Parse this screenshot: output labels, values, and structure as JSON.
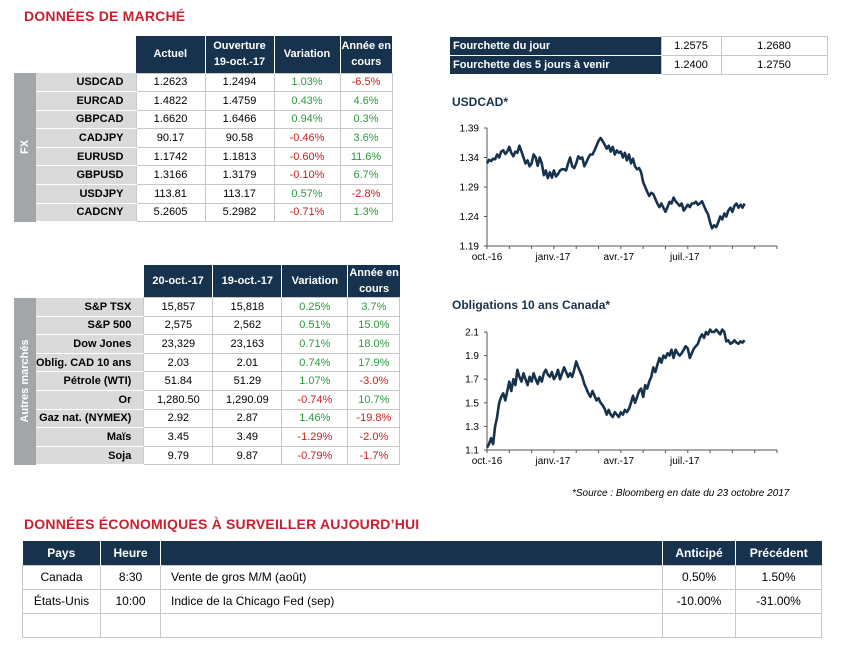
{
  "market_title": "DONNÉES DE MARCHÉ",
  "fx": {
    "group_label": "FX",
    "headers": [
      "Actuel",
      "Ouverture\n19-oct.-17",
      "Variation",
      "Année en\ncours"
    ],
    "rows": [
      {
        "name": "USDCAD",
        "actuel": "1.2623",
        "ouverture": "1.2494",
        "variation": "1.03%",
        "ytd": "-6.5%"
      },
      {
        "name": "EURCAD",
        "actuel": "1.4822",
        "ouverture": "1.4759",
        "variation": "0.43%",
        "ytd": "4.6%"
      },
      {
        "name": "GBPCAD",
        "actuel": "1.6620",
        "ouverture": "1.6466",
        "variation": "0.94%",
        "ytd": "0.3%"
      },
      {
        "name": "CADJPY",
        "actuel": "90.17",
        "ouverture": "90.58",
        "variation": "-0.46%",
        "ytd": "3.6%"
      },
      {
        "name": "EURUSD",
        "actuel": "1.1742",
        "ouverture": "1.1813",
        "variation": "-0.60%",
        "ytd": "11.6%"
      },
      {
        "name": "GBPUSD",
        "actuel": "1.3166",
        "ouverture": "1.3179",
        "variation": "-0.10%",
        "ytd": "6.7%"
      },
      {
        "name": "USDJPY",
        "actuel": "113.81",
        "ouverture": "113.17",
        "variation": "0.57%",
        "ytd": "-2.8%"
      },
      {
        "name": "CADCNY",
        "actuel": "5.2605",
        "ouverture": "5.2982",
        "variation": "-0.71%",
        "ytd": "1.3%"
      }
    ]
  },
  "other": {
    "group_label": "Autres marchés",
    "headers": [
      "20-oct.-17",
      "19-oct.-17",
      "Variation",
      "Année en\ncours"
    ],
    "rows": [
      {
        "name": "S&P TSX",
        "actuel": "15,857",
        "ouverture": "15,818",
        "variation": "0.25%",
        "ytd": "3.7%"
      },
      {
        "name": "S&P 500",
        "actuel": "2,575",
        "ouverture": "2,562",
        "variation": "0.51%",
        "ytd": "15.0%"
      },
      {
        "name": "Dow Jones",
        "actuel": "23,329",
        "ouverture": "23,163",
        "variation": "0.71%",
        "ytd": "18.0%"
      },
      {
        "name": "Oblig. CAD 10 ans",
        "actuel": "2.03",
        "ouverture": "2.01",
        "variation": "0.74%",
        "ytd": "17.9%"
      },
      {
        "name": "Pétrole (WTI)",
        "actuel": "51.84",
        "ouverture": "51.29",
        "variation": "1.07%",
        "ytd": "-3.0%"
      },
      {
        "name": "Or",
        "actuel": "1,280.50",
        "ouverture": "1,290.09",
        "variation": "-0.74%",
        "ytd": "10.7%"
      },
      {
        "name": "Gaz nat. (NYMEX)",
        "actuel": "2.92",
        "ouverture": "2.87",
        "variation": "1.46%",
        "ytd": "-19.8%"
      },
      {
        "name": "Maïs",
        "actuel": "3.45",
        "ouverture": "3.49",
        "variation": "-1.29%",
        "ytd": "-2.0%"
      },
      {
        "name": "Soja",
        "actuel": "9.79",
        "ouverture": "9.87",
        "variation": "-0.79%",
        "ytd": "-1.7%"
      }
    ]
  },
  "range": {
    "rows": [
      {
        "label": "Fourchette du jour",
        "low": "1.2575",
        "high": "1.2680"
      },
      {
        "label": "Fourchette des 5 jours à venir",
        "low": "1.2400",
        "high": "1.2750"
      }
    ]
  },
  "chart_data": [
    {
      "type": "line",
      "title": "USDCAD*",
      "x_ticks": [
        "oct.-16",
        "janv.-17",
        "avr.-17",
        "juil.-17"
      ],
      "y_ticks": [
        1.19,
        1.24,
        1.29,
        1.34,
        1.39
      ],
      "ylim": [
        1.19,
        1.39
      ],
      "grid": false,
      "color": "#17324d",
      "series": [
        {
          "x": [
            0,
            2,
            4,
            6,
            8,
            10,
            12,
            14,
            16,
            18,
            20,
            22,
            24,
            26,
            28,
            30,
            32,
            34,
            36,
            38,
            40,
            42,
            44,
            46,
            48,
            50,
            52,
            54,
            56,
            58,
            60,
            62,
            64,
            66,
            68,
            70,
            72,
            74,
            76,
            78,
            80,
            82,
            84,
            86,
            88,
            90,
            92,
            94,
            96,
            98,
            100,
            102,
            104,
            106,
            108,
            110,
            112,
            114,
            116,
            118,
            120,
            122,
            124,
            126,
            128,
            130,
            132,
            134,
            136,
            138,
            140,
            142,
            144,
            146,
            148,
            150,
            152,
            154,
            156,
            158,
            160,
            162,
            164,
            166,
            168,
            170,
            172,
            174,
            176,
            178,
            180,
            182,
            184,
            186,
            188,
            190,
            192,
            194,
            196,
            198,
            200,
            202,
            204,
            206,
            208,
            210,
            212,
            214,
            216,
            218,
            220,
            222,
            224,
            226,
            228,
            230,
            232,
            234,
            236,
            238,
            240,
            242,
            244,
            246,
            248,
            250,
            252,
            254
          ],
          "y": [
            1.33,
            1.336,
            1.334,
            1.338,
            1.337,
            1.345,
            1.34,
            1.35,
            1.352,
            1.346,
            1.35,
            1.358,
            1.348,
            1.342,
            1.35,
            1.348,
            1.36,
            1.35,
            1.34,
            1.33,
            1.335,
            1.325,
            1.33,
            1.345,
            1.34,
            1.326,
            1.34,
            1.33,
            1.31,
            1.318,
            1.305,
            1.315,
            1.306,
            1.318,
            1.308,
            1.312,
            1.318,
            1.32,
            1.32,
            1.318,
            1.33,
            1.34,
            1.325,
            1.322,
            1.33,
            1.342,
            1.338,
            1.34,
            1.325,
            1.332,
            1.34,
            1.345,
            1.345,
            1.352,
            1.36,
            1.368,
            1.373,
            1.368,
            1.362,
            1.355,
            1.36,
            1.35,
            1.358,
            1.345,
            1.352,
            1.348,
            1.35,
            1.34,
            1.348,
            1.335,
            1.345,
            1.33,
            1.338,
            1.325,
            1.32,
            1.322,
            1.315,
            1.298,
            1.29,
            1.282,
            1.275,
            1.28,
            1.278,
            1.27,
            1.262,
            1.256,
            1.262,
            1.255,
            1.248,
            1.256,
            1.265,
            1.262,
            1.272,
            1.266,
            1.262,
            1.258,
            1.262,
            1.25,
            1.255,
            1.26,
            1.256,
            1.262,
            1.262,
            1.265,
            1.26,
            1.262,
            1.266,
            1.258,
            1.25,
            1.244,
            1.23,
            1.22,
            1.225,
            1.222,
            1.23,
            1.24,
            1.235,
            1.245,
            1.24,
            1.25,
            1.255,
            1.248,
            1.258,
            1.262,
            1.255,
            1.26,
            1.255,
            1.262
          ]
        }
      ]
    },
    {
      "type": "line",
      "title": "Obligations 10 ans Canada*",
      "x_ticks": [
        "oct.-16",
        "janv.-17",
        "avr.-17",
        "juil.-17"
      ],
      "y_ticks": [
        1.1,
        1.3,
        1.5,
        1.7,
        1.9,
        2.1
      ],
      "ylim": [
        1.1,
        2.1
      ],
      "grid": false,
      "color": "#17324d",
      "series": [
        {
          "x": [
            0,
            2,
            4,
            6,
            8,
            10,
            12,
            14,
            16,
            18,
            20,
            22,
            24,
            26,
            28,
            30,
            32,
            34,
            36,
            38,
            40,
            42,
            44,
            46,
            48,
            50,
            52,
            54,
            56,
            58,
            60,
            62,
            64,
            66,
            68,
            70,
            72,
            74,
            76,
            78,
            80,
            82,
            84,
            86,
            88,
            90,
            92,
            94,
            96,
            98,
            100,
            102,
            104,
            106,
            108,
            110,
            112,
            114,
            116,
            118,
            120,
            122,
            124,
            126,
            128,
            130,
            132,
            134,
            136,
            138,
            140,
            142,
            144,
            146,
            148,
            150,
            152,
            154,
            156,
            158,
            160,
            162,
            164,
            166,
            168,
            170,
            172,
            174,
            176,
            178,
            180,
            182,
            184,
            186,
            188,
            190,
            192,
            194,
            196,
            198,
            200,
            202,
            204,
            206,
            208,
            210,
            212,
            214,
            216,
            218,
            220,
            222,
            224,
            226,
            228,
            230,
            232,
            234,
            236,
            238,
            240,
            242,
            244,
            246,
            248,
            250,
            252,
            254
          ],
          "y": [
            1.12,
            1.15,
            1.2,
            1.15,
            1.3,
            1.38,
            1.5,
            1.55,
            1.58,
            1.52,
            1.6,
            1.68,
            1.6,
            1.7,
            1.65,
            1.78,
            1.72,
            1.68,
            1.75,
            1.7,
            1.65,
            1.72,
            1.68,
            1.75,
            1.7,
            1.66,
            1.72,
            1.68,
            1.75,
            1.78,
            1.74,
            1.72,
            1.76,
            1.7,
            1.73,
            1.78,
            1.7,
            1.75,
            1.8,
            1.76,
            1.72,
            1.75,
            1.72,
            1.78,
            1.85,
            1.8,
            1.76,
            1.72,
            1.66,
            1.62,
            1.58,
            1.55,
            1.6,
            1.56,
            1.52,
            1.54,
            1.5,
            1.48,
            1.45,
            1.4,
            1.44,
            1.4,
            1.38,
            1.42,
            1.4,
            1.38,
            1.42,
            1.4,
            1.44,
            1.42,
            1.45,
            1.5,
            1.56,
            1.5,
            1.55,
            1.6,
            1.62,
            1.55,
            1.65,
            1.62,
            1.68,
            1.72,
            1.8,
            1.76,
            1.82,
            1.88,
            1.84,
            1.9,
            1.88,
            1.92,
            1.9,
            1.95,
            1.88,
            1.95,
            1.92,
            1.9,
            1.92,
            1.95,
            1.98,
            1.96,
            1.88,
            1.92,
            1.96,
            1.98,
            2.0,
            2.05,
            2.08,
            2.05,
            2.1,
            2.08,
            2.12,
            2.1,
            2.1,
            2.12,
            2.1,
            2.08,
            2.12,
            2.1,
            2.02,
            2.03,
            2.0,
            2.01,
            2.03,
            2.01,
            2.0,
            2.02,
            2.01,
            2.03
          ]
        }
      ]
    }
  ],
  "source_note": "*Source : Bloomberg en date du  23 octobre 2017",
  "eco_title": "DONNÉES ÉCONOMIQUES À SURVEILLER AUJOURD’HUI",
  "eco": {
    "headers": [
      "Pays",
      "Heure",
      "",
      "Anticipé",
      "Précédent"
    ],
    "rows": [
      {
        "pays": "Canada",
        "heure": "8:30",
        "event": "Vente de gros M/M (août)",
        "anticipe": "0.50%",
        "precedent": "1.50%"
      },
      {
        "pays": "États-Unis",
        "heure": "10:00",
        "event": "Indice de la Chicago Fed (sep)",
        "anticipe": "-10.00%",
        "precedent": "-31.00%"
      },
      {
        "pays": "",
        "heure": "",
        "event": "",
        "anticipe": "",
        "precedent": ""
      }
    ]
  }
}
